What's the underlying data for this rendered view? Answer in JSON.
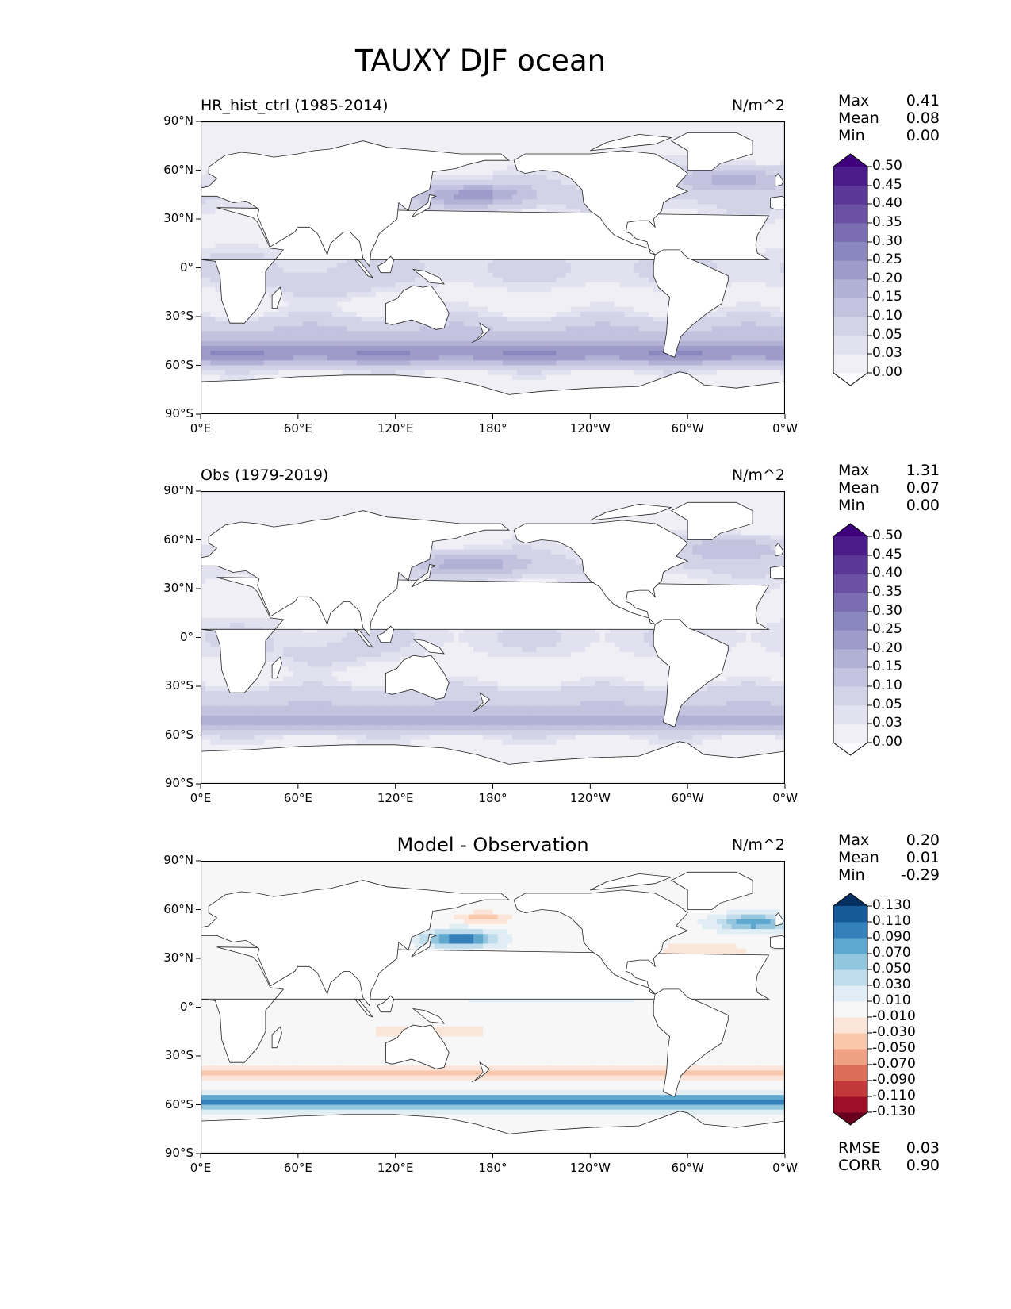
{
  "figure": {
    "title": "TAUXY DJF ocean"
  },
  "colors": {
    "purples": [
      "#fcfbfd",
      "#f1eff6",
      "#e2e1ef",
      "#d3d3e8",
      "#c3c3df",
      "#b1b0d5",
      "#9e9bc9",
      "#8a87bf",
      "#7a6db1",
      "#6a51a3",
      "#5b3797",
      "#4b1c8a",
      "#3f007d"
    ],
    "rdbu": [
      "#67001f",
      "#9e0f27",
      "#c3383a",
      "#dc6e57",
      "#eea184",
      "#f8c7ac",
      "#fbe5d8",
      "#f7f7f7",
      "#e0edf4",
      "#bfdcec",
      "#92c5de",
      "#5ea7cf",
      "#3380ba",
      "#175a9a",
      "#053061"
    ],
    "land": "#ffffff",
    "coast": "#222222"
  },
  "panels": [
    {
      "subtitle": "HR_hist_ctrl (1985-2014)",
      "units": "N/m^2",
      "stats": [
        {
          "label": "Max",
          "value": "0.41"
        },
        {
          "label": "Mean",
          "value": "0.08"
        },
        {
          "label": "Min",
          "value": "0.00"
        }
      ],
      "field": "model",
      "colorbar": {
        "ticks": [
          "0.00",
          "0.03",
          "0.05",
          "0.10",
          "0.15",
          "0.20",
          "0.25",
          "0.30",
          "0.35",
          "0.40",
          "0.45",
          "0.50"
        ],
        "cmap": "purples"
      }
    },
    {
      "subtitle": "Obs (1979-2019)",
      "units": "N/m^2",
      "stats": [
        {
          "label": "Max",
          "value": "1.31"
        },
        {
          "label": "Mean",
          "value": "0.07"
        },
        {
          "label": "Min",
          "value": "0.00"
        }
      ],
      "field": "obs",
      "colorbar": {
        "ticks": [
          "0.00",
          "0.03",
          "0.05",
          "0.10",
          "0.15",
          "0.20",
          "0.25",
          "0.30",
          "0.35",
          "0.40",
          "0.45",
          "0.50"
        ],
        "cmap": "purples"
      }
    },
    {
      "title": "Model - Observation",
      "units": "N/m^2",
      "stats": [
        {
          "label": "Max",
          "value": "0.20"
        },
        {
          "label": "Mean",
          "value": "0.01"
        },
        {
          "label": "Min",
          "value": "-0.29"
        }
      ],
      "extra_stats": [
        {
          "label": "RMSE",
          "value": "0.03"
        },
        {
          "label": "CORR",
          "value": "0.90"
        }
      ],
      "field": "diff",
      "colorbar": {
        "ticks": [
          "-0.130",
          "-0.110",
          "-0.090",
          "-0.070",
          "-0.050",
          "-0.030",
          "-0.010",
          "0.010",
          "0.030",
          "0.050",
          "0.070",
          "0.090",
          "0.110",
          "0.130"
        ],
        "cmap": "rdbu"
      }
    }
  ],
  "axes": {
    "y_ticks": [
      "90°N",
      "60°N",
      "30°N",
      "0°",
      "30°S",
      "60°S",
      "90°S"
    ],
    "x_ticks": [
      "0°E",
      "60°E",
      "120°E",
      "180°",
      "120°W",
      "60°W",
      "0°W"
    ]
  }
}
